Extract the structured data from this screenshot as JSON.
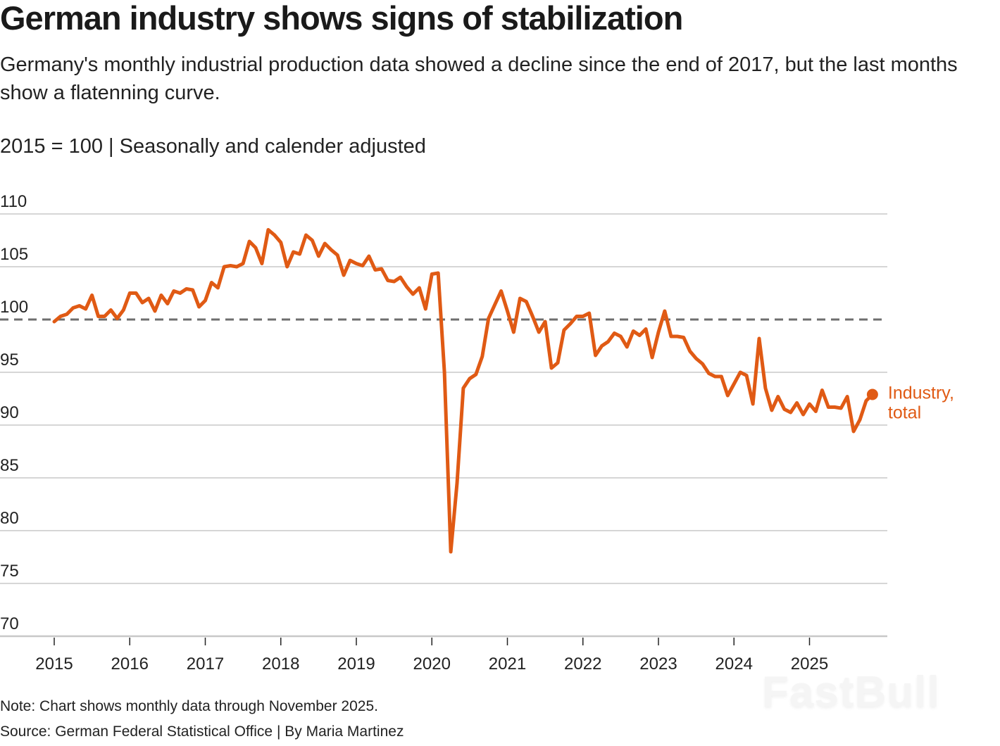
{
  "header": {
    "title": "German industry shows signs of stabilization",
    "subtitle": "Germany's monthly industrial production data showed a decline since the end of 2017, but the last months show a flatenning curve.",
    "unit_note": "2015 = 100 | Seasonally and calender adjusted"
  },
  "footer": {
    "note": "Note: Chart shows monthly data through November 2025.",
    "source": "Source: German Federal Statistical Office | By Maria Martinez",
    "watermark": "FastBull"
  },
  "colors": {
    "series": "#e05a14",
    "grid": "#c8c8c8",
    "reference": "#6e6e6e"
  },
  "chart_data": {
    "type": "line",
    "title": "German industry shows signs of stabilization",
    "xlabel": "",
    "ylabel": "2015 = 100",
    "ylim": [
      70,
      110
    ],
    "yticks": [
      110,
      105,
      100,
      95,
      90,
      85,
      80,
      75,
      70
    ],
    "xticks": [
      "2015",
      "2016",
      "2017",
      "2018",
      "2019",
      "2020",
      "2021",
      "2022",
      "2023",
      "2024",
      "2025"
    ],
    "grid": true,
    "reference_line": 100,
    "start": "2015-01",
    "end": "2025-11",
    "frequency": "monthly",
    "series": [
      {
        "name": "Industry, total",
        "label_lines": [
          "Industry,",
          "total"
        ],
        "values": [
          99.8,
          100.3,
          100.5,
          101.1,
          101.3,
          101.0,
          102.3,
          100.3,
          100.3,
          100.9,
          100.1,
          100.9,
          102.5,
          102.5,
          101.6,
          102.0,
          100.8,
          102.3,
          101.5,
          102.7,
          102.5,
          102.9,
          102.8,
          101.2,
          101.8,
          103.5,
          103.0,
          105.0,
          105.1,
          105.0,
          105.3,
          107.4,
          106.8,
          105.3,
          108.5,
          108.0,
          107.3,
          105.0,
          106.4,
          106.2,
          108.0,
          107.5,
          106.0,
          107.2,
          106.6,
          106.1,
          104.2,
          105.6,
          105.3,
          105.1,
          106.0,
          104.7,
          104.8,
          103.7,
          103.6,
          104.0,
          103.1,
          102.4,
          103.0,
          101.0,
          104.3,
          104.4,
          95.0,
          78.0,
          84.5,
          93.5,
          94.4,
          94.8,
          96.5,
          100.1,
          101.4,
          102.7,
          100.8,
          98.8,
          102.0,
          101.7,
          100.3,
          98.8,
          99.8,
          95.4,
          95.9,
          99.0,
          99.6,
          100.3,
          100.3,
          100.6,
          96.6,
          97.5,
          97.9,
          98.7,
          98.4,
          97.4,
          98.9,
          98.5,
          99.1,
          96.4,
          98.8,
          100.8,
          98.4,
          98.4,
          98.3,
          97.0,
          96.3,
          95.8,
          94.9,
          94.6,
          94.6,
          92.8,
          93.9,
          95.0,
          94.7,
          92.0,
          98.2,
          93.5,
          91.4,
          92.7,
          91.5,
          91.2,
          92.1,
          91.0,
          92.0,
          91.3,
          93.3,
          91.7,
          91.7,
          91.6,
          92.7,
          89.4,
          90.5,
          92.3,
          92.9
        ]
      }
    ]
  }
}
